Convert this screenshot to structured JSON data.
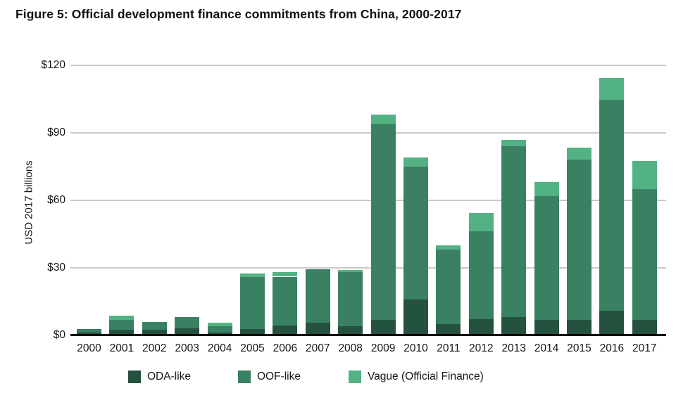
{
  "figure": {
    "title": "Figure 5: Official development finance commitments from China, 2000-2017"
  },
  "chart_data": {
    "type": "bar",
    "stacked": true,
    "title": "Figure 5: Official development finance commitments from China, 2000-2017",
    "xlabel": "",
    "ylabel": "USD 2017 billions",
    "ylim": [
      0,
      120
    ],
    "grid": "horizontal",
    "legend_position": "bottom",
    "yticks": [
      {
        "value": 0,
        "label": "$0"
      },
      {
        "value": 30,
        "label": "$30"
      },
      {
        "value": 60,
        "label": "$60"
      },
      {
        "value": 90,
        "label": "$90"
      },
      {
        "value": 120,
        "label": "$120"
      }
    ],
    "categories": [
      "2000",
      "2001",
      "2002",
      "2003",
      "2004",
      "2005",
      "2006",
      "2007",
      "2008",
      "2009",
      "2010",
      "2011",
      "2012",
      "2013",
      "2014",
      "2015",
      "2016",
      "2017"
    ],
    "series": [
      {
        "name": "ODA-like",
        "color": "#24523f",
        "values": [
          1.0,
          2.3,
          2.3,
          2.9,
          1.2,
          2.6,
          4.1,
          5.4,
          3.9,
          6.7,
          15.8,
          4.9,
          7.0,
          8.0,
          6.7,
          6.7,
          10.9,
          6.7
        ]
      },
      {
        "name": "OOF-like",
        "color": "#3a8164",
        "values": [
          1.8,
          4.4,
          3.4,
          5.1,
          2.7,
          23.3,
          21.9,
          23.8,
          24.0,
          87.4,
          59.3,
          33.1,
          39.1,
          76.0,
          55.1,
          71.5,
          94.0,
          58.2
        ]
      },
      {
        "name": "Vague (Official Finance)",
        "color": "#52b283",
        "values": [
          0.0,
          1.8,
          0.0,
          0.0,
          1.5,
          1.5,
          1.9,
          0.0,
          1.0,
          4.2,
          4.0,
          1.9,
          8.1,
          2.9,
          6.3,
          5.2,
          9.7,
          12.5
        ]
      }
    ],
    "totals": [
      2.8,
      8.5,
      5.7,
      8.0,
      5.4,
      27.4,
      27.9,
      29.2,
      28.9,
      98.3,
      79.1,
      39.9,
      54.2,
      86.9,
      68.1,
      83.4,
      114.6,
      77.4
    ],
    "colors": {
      "gridline": "#c9c9c9",
      "axis": "#000000",
      "text": "#161616"
    }
  }
}
